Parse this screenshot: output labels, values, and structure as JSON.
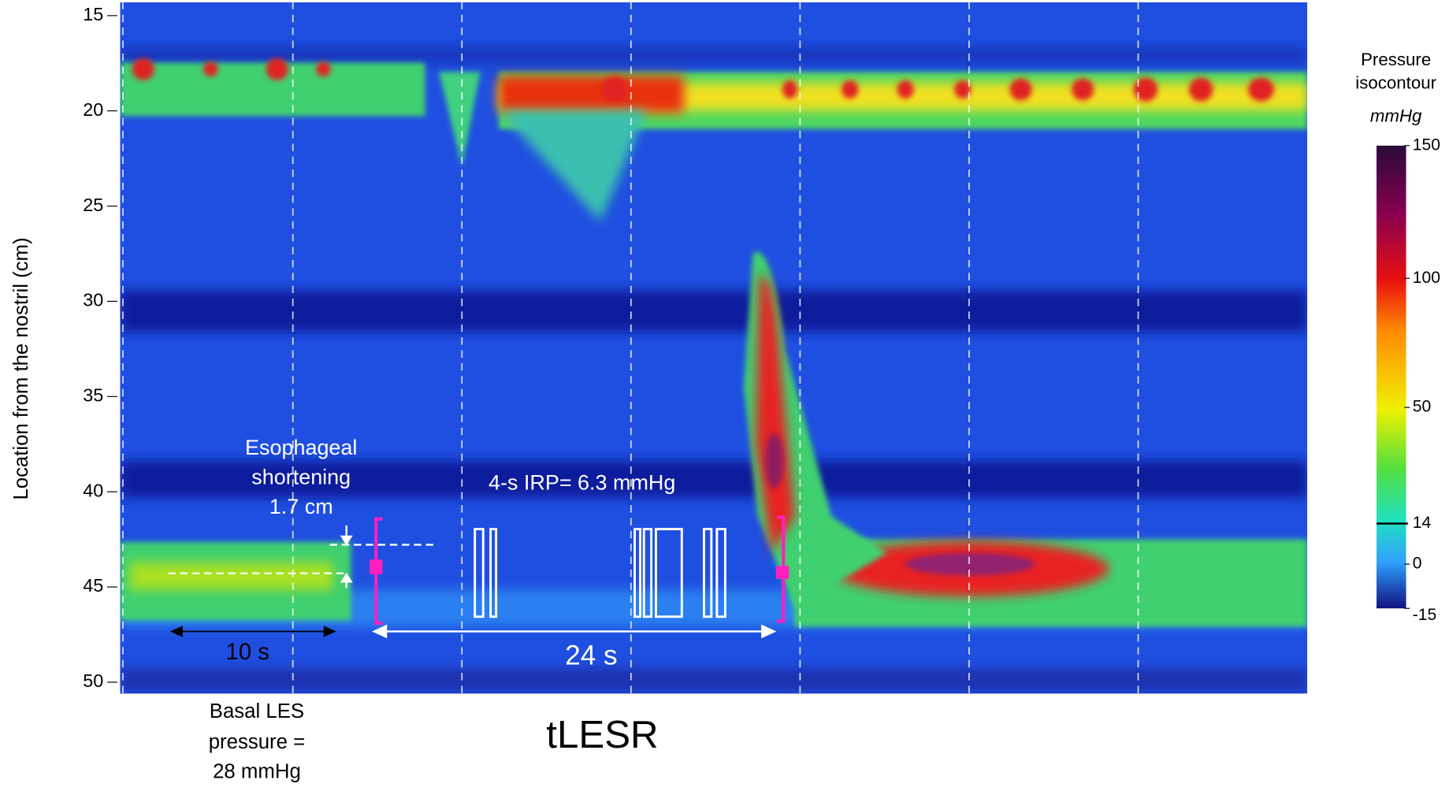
{
  "chart_data": {
    "type": "heatmap",
    "ylabel": "Location from the nostril (cm)",
    "ylim": [
      14.3,
      50.6
    ],
    "yticks": [
      15,
      20,
      25,
      30,
      35,
      40,
      45,
      50
    ],
    "title": "tLESR",
    "annotations": {
      "shortening": [
        "Esophageal",
        "shortening",
        "1.7 cm"
      ],
      "irp": "4-s IRP= 6.3 mmHg",
      "basal_duration": "10 s",
      "tlesr_duration": "24 s",
      "basal_pressure": [
        "Basal LES",
        "pressure =",
        "28 mmHg"
      ]
    },
    "colorbar": {
      "title": [
        "Pressure",
        "isocontour"
      ],
      "unit": "mmHg",
      "ticks": [
        150,
        100,
        50,
        14,
        0,
        -15
      ]
    }
  }
}
